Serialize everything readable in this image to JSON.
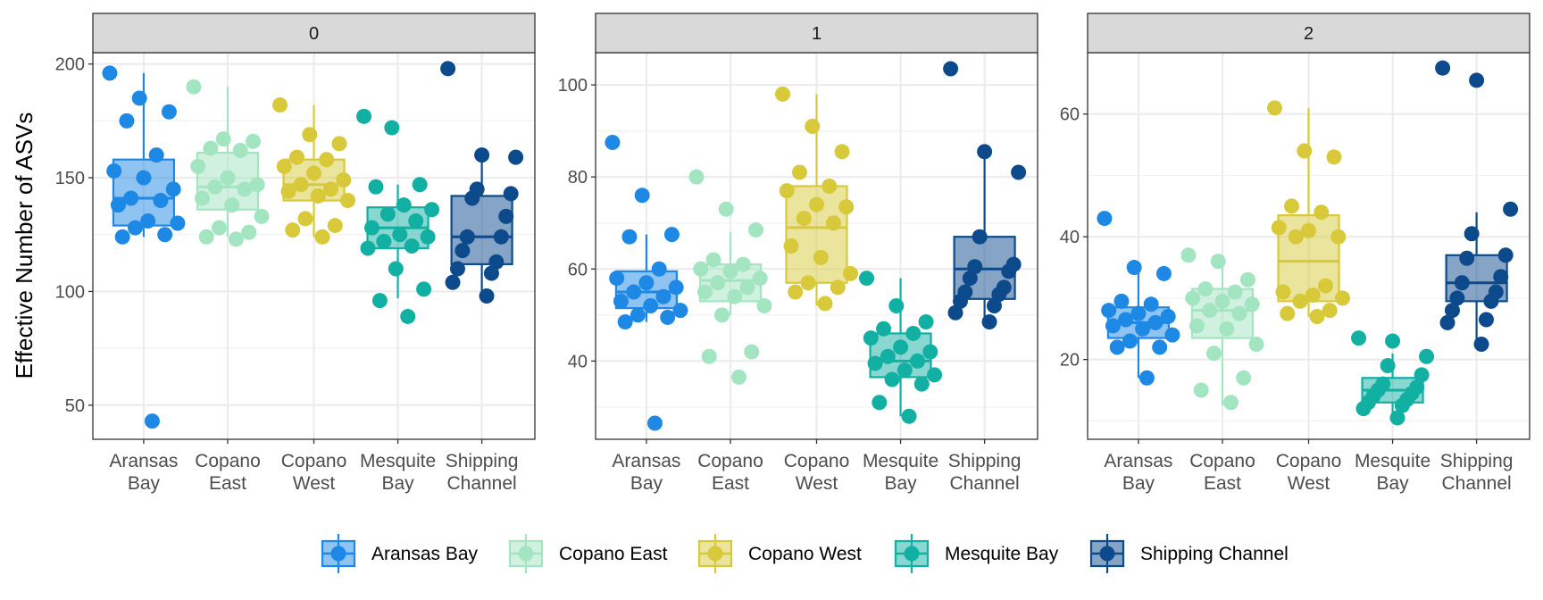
{
  "chart_data": {
    "type": "boxplot",
    "ylabel": "Effective Number of ASVs",
    "categories": [
      {
        "name": "Aransas Bay",
        "lines": [
          "Aransas",
          "Bay"
        ]
      },
      {
        "name": "Copano East",
        "lines": [
          "Copano",
          "East"
        ]
      },
      {
        "name": "Copano West",
        "lines": [
          "Copano",
          "West"
        ]
      },
      {
        "name": "Mesquite Bay",
        "lines": [
          "Mesquite",
          "Bay"
        ]
      },
      {
        "name": "Shipping Channel",
        "lines": [
          "Shipping",
          "Channel"
        ]
      }
    ],
    "colors": {
      "Aransas Bay": "#1E88E5",
      "Copano East": "#A3E4C1",
      "Copano West": "#D8C93A",
      "Mesquite Bay": "#12B0A3",
      "Shipping Channel": "#0D4A8C"
    },
    "legend": {
      "position": "bottom",
      "items": [
        "Aransas Bay",
        "Copano East",
        "Copano West",
        "Mesquite Bay",
        "Shipping Channel"
      ]
    },
    "grid": true,
    "panels": [
      {
        "label": "0",
        "ylim": [
          35,
          205
        ],
        "yticks": [
          50,
          100,
          150,
          200
        ],
        "boxes": [
          {
            "q1": 129,
            "median": 141,
            "q3": 158,
            "lo": 124,
            "hi": 196,
            "points": [
              196,
              185,
              179,
              175,
              160,
              153,
              150,
              145,
              141,
              140,
              138,
              131,
              130,
              128,
              125,
              124,
              43
            ]
          },
          {
            "q1": 136,
            "median": 146,
            "q3": 161,
            "lo": 124,
            "hi": 190,
            "points": [
              190,
              167,
              166,
              163,
              162,
              155,
              150,
              147,
              146,
              145,
              141,
              138,
              133,
              128,
              126,
              124,
              123
            ]
          },
          {
            "q1": 140,
            "median": 147,
            "q3": 158,
            "lo": 124,
            "hi": 182,
            "points": [
              182,
              169,
              165,
              159,
              158,
              155,
              152,
              149,
              147,
              145,
              144,
              142,
              140,
              132,
              129,
              127,
              124
            ]
          },
          {
            "q1": 119,
            "median": 128,
            "q3": 137,
            "lo": 97,
            "hi": 147,
            "points": [
              177,
              172,
              147,
              146,
              138,
              136,
              134,
              131,
              128,
              125,
              124,
              122,
              120,
              119,
              110,
              101,
              96,
              89
            ]
          },
          {
            "q1": 112,
            "median": 124,
            "q3": 142,
            "lo": 98,
            "hi": 160,
            "points": [
              198,
              160,
              159,
              145,
              143,
              141,
              133,
              124,
              124,
              118,
              113,
              110,
              108,
              104,
              98
            ]
          }
        ]
      },
      {
        "label": "1",
        "ylim": [
          23,
          107
        ],
        "yticks": [
          40,
          60,
          80,
          100
        ],
        "boxes": [
          {
            "q1": 51.5,
            "median": 55,
            "q3": 59.5,
            "lo": 48.5,
            "hi": 67.5,
            "points": [
              87.5,
              76,
              67.5,
              67,
              60,
              58,
              57,
              56,
              55,
              54,
              53,
              52,
              51,
              50,
              49.5,
              48.5,
              26.5
            ]
          },
          {
            "q1": 53,
            "median": 57.5,
            "q3": 61,
            "lo": 50,
            "hi": 68,
            "points": [
              80,
              73,
              68.5,
              62,
              61,
              60,
              59.5,
              58,
              57,
              56,
              55,
              54,
              52,
              50,
              42,
              41,
              36.5
            ]
          },
          {
            "q1": 57,
            "median": 69,
            "q3": 78,
            "lo": 52,
            "hi": 98,
            "points": [
              98,
              91,
              85.5,
              81,
              78,
              77,
              74,
              73.5,
              71,
              70,
              65,
              62.5,
              59,
              57,
              56,
              55,
              52.5
            ]
          },
          {
            "q1": 36.5,
            "median": 40,
            "q3": 46,
            "lo": 28,
            "hi": 58,
            "points": [
              58,
              52,
              48.5,
              47,
              46,
              45,
              43,
              42,
              41,
              40,
              39.5,
              38,
              37,
              36,
              35,
              31,
              28
            ]
          },
          {
            "q1": 53.5,
            "median": 60,
            "q3": 67,
            "lo": 48.5,
            "hi": 85.5,
            "points": [
              103.5,
              85.5,
              81,
              67,
              61,
              60.5,
              59.5,
              58,
              56,
              55,
              54.5,
              53,
              52,
              50.5,
              48.5
            ]
          }
        ]
      },
      {
        "label": "2",
        "ylim": [
          7,
          70
        ],
        "yticks": [
          20,
          40,
          60
        ],
        "boxes": [
          {
            "q1": 23.5,
            "median": 26,
            "q3": 28.5,
            "lo": 17,
            "hi": 35,
            "points": [
              43,
              35,
              34,
              29.5,
              29,
              28,
              27.5,
              27,
              26.5,
              26,
              25.5,
              25,
              24,
              23,
              22,
              22,
              17
            ]
          },
          {
            "q1": 23.5,
            "median": 28,
            "q3": 31.5,
            "lo": 12.5,
            "hi": 37,
            "points": [
              37,
              36,
              33,
              31.5,
              31,
              30,
              29.5,
              29,
              28,
              27.5,
              25.5,
              25,
              22.5,
              21,
              17,
              15,
              13
            ]
          },
          {
            "q1": 29.5,
            "median": 36,
            "q3": 43.5,
            "lo": 27,
            "hi": 61,
            "points": [
              61,
              54,
              53,
              45,
              44,
              41.5,
              41,
              40,
              40,
              32,
              31,
              30.5,
              30,
              29.5,
              28,
              27.5,
              27
            ]
          },
          {
            "q1": 13,
            "median": 15,
            "q3": 17,
            "lo": 10,
            "hi": 21,
            "points": [
              23.5,
              23,
              20.5,
              19,
              17.5,
              16,
              15.5,
              15,
              14.5,
              14,
              13.5,
              13,
              12.5,
              12,
              10.5
            ]
          },
          {
            "q1": 29.5,
            "median": 32.5,
            "q3": 37,
            "lo": 22.5,
            "hi": 44,
            "points": [
              67.5,
              65.5,
              44.5,
              40.5,
              37,
              36.5,
              33.5,
              32.5,
              31,
              30,
              29.5,
              28,
              26.5,
              26,
              22.5
            ]
          }
        ]
      }
    ]
  }
}
